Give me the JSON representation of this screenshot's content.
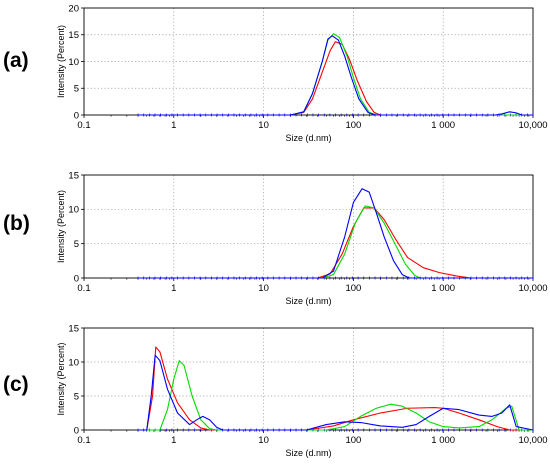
{
  "chart_data": [
    {
      "type": "line",
      "panel_label": "(a)",
      "xlabel": "Size (d.nm)",
      "ylabel": "Intensity (Percent)",
      "x_scale": "log",
      "xlim": [
        0.1,
        10000
      ],
      "ylim": [
        0,
        20
      ],
      "x_ticks": [
        0.1,
        1,
        10,
        100,
        1000,
        10000
      ],
      "x_tick_labels": [
        "0.1",
        "1",
        "10",
        "100",
        "1 000",
        "10,000"
      ],
      "y_ticks": [
        0,
        5,
        10,
        15,
        20
      ],
      "y_tick_labels": [
        "0",
        "5",
        "10",
        "15",
        "20"
      ],
      "grid": true,
      "series": [
        {
          "color": "#ff0000",
          "x": [
            0.4,
            20,
            28,
            35,
            45,
            55,
            63,
            75,
            90,
            110,
            140,
            170,
            200,
            10000
          ],
          "y": [
            0,
            0,
            0.5,
            3,
            8,
            12,
            13.7,
            13.2,
            10.5,
            6.5,
            2.5,
            0.5,
            0,
            0
          ]
        },
        {
          "color": "#00dd00",
          "x": [
            0.4,
            20,
            28,
            35,
            45,
            52,
            60,
            70,
            85,
            100,
            120,
            150,
            180,
            10000
          ],
          "y": [
            0,
            0,
            0.6,
            4,
            10,
            14,
            15.2,
            14.5,
            11,
            7,
            3,
            0.5,
            0,
            0
          ]
        },
        {
          "color": "#0000ff",
          "x": [
            0.4,
            20,
            28,
            35,
            45,
            52,
            58,
            68,
            80,
            95,
            115,
            145,
            175,
            3800,
            4500,
            5500,
            6500,
            7500,
            10000
          ],
          "y": [
            0,
            0,
            0.6,
            4,
            10,
            14.2,
            14.8,
            14,
            11,
            7,
            3,
            0.5,
            0,
            0,
            0.2,
            0.6,
            0.4,
            0,
            0
          ]
        }
      ]
    },
    {
      "type": "line",
      "panel_label": "(b)",
      "xlabel": "Size (d.nm)",
      "ylabel": "Intensity (Percent)",
      "x_scale": "log",
      "xlim": [
        0.1,
        10000
      ],
      "ylim": [
        0,
        15
      ],
      "x_ticks": [
        0.1,
        1,
        10,
        100,
        1000,
        10000
      ],
      "x_tick_labels": [
        "0.1",
        "1",
        "10",
        "100",
        "1 000",
        "10,000"
      ],
      "y_ticks": [
        0,
        5,
        10,
        15
      ],
      "y_tick_labels": [
        "0",
        "5",
        "10",
        "15"
      ],
      "grid": true,
      "series": [
        {
          "color": "#ff0000",
          "x": [
            0.4,
            40,
            55,
            75,
            100,
            130,
            170,
            220,
            300,
            400,
            600,
            900,
            1400,
            2000,
            10000
          ],
          "y": [
            0,
            0,
            0.6,
            3.5,
            7.5,
            10.2,
            10.2,
            8.5,
            5.5,
            3,
            1.5,
            0.8,
            0.3,
            0,
            0
          ]
        },
        {
          "color": "#00dd00",
          "x": [
            0.4,
            45,
            60,
            80,
            105,
            135,
            170,
            220,
            290,
            380,
            480,
            550,
            10000
          ],
          "y": [
            0,
            0,
            0.5,
            3.5,
            8,
            10.5,
            10.2,
            8,
            5,
            2,
            0.4,
            0,
            0
          ]
        },
        {
          "color": "#0000ff",
          "x": [
            0.4,
            45,
            60,
            80,
            100,
            125,
            150,
            180,
            220,
            280,
            350,
            420,
            10000
          ],
          "y": [
            0,
            0,
            1,
            6,
            11,
            13,
            12.5,
            9.5,
            6,
            2.5,
            0.5,
            0,
            0
          ]
        }
      ]
    },
    {
      "type": "line",
      "panel_label": "(c)",
      "xlabel": "Size (d.nm)",
      "ylabel": "Intensity (Percent)",
      "x_scale": "log",
      "xlim": [
        0.1,
        10000
      ],
      "ylim": [
        0,
        15
      ],
      "x_ticks": [
        0.1,
        1,
        10,
        100,
        1000,
        10000
      ],
      "x_tick_labels": [
        "0.1",
        "1",
        "10",
        "100",
        "1 000",
        "10,000"
      ],
      "y_ticks": [
        0,
        5,
        10,
        15
      ],
      "y_tick_labels": [
        "0",
        "5",
        "10",
        "15"
      ],
      "grid": true,
      "series": [
        {
          "color": "#ff0000",
          "x": [
            0.4,
            0.5,
            0.58,
            0.63,
            0.7,
            0.85,
            1.1,
            1.5,
            2,
            2.5,
            30,
            60,
            100,
            200,
            400,
            800,
            1000,
            1500,
            2500,
            4000,
            5500,
            10000
          ],
          "y": [
            0,
            0,
            5,
            12.2,
            11.5,
            7.5,
            4,
            1.5,
            0.3,
            0,
            0,
            0.6,
            1.5,
            2.5,
            3.2,
            3.3,
            3.2,
            2.5,
            1.5,
            0.5,
            0,
            0
          ]
        },
        {
          "color": "#00dd00",
          "x": [
            0.4,
            0.7,
            0.85,
            1,
            1.15,
            1.3,
            1.6,
            2,
            2.5,
            3,
            50,
            80,
            120,
            180,
            260,
            350,
            500,
            700,
            1000,
            1500,
            2500,
            3500,
            5000,
            5800,
            7000,
            10000
          ],
          "y": [
            0,
            0,
            3,
            7.5,
            10.2,
            9.5,
            5,
            1.5,
            0.2,
            0,
            0,
            0.5,
            2,
            3.2,
            3.8,
            3.5,
            2.5,
            1.2,
            0.5,
            0.3,
            0.5,
            1.5,
            3.2,
            3.5,
            0,
            0
          ]
        },
        {
          "color": "#0000ff",
          "x": [
            0.4,
            0.5,
            0.56,
            0.62,
            0.7,
            0.85,
            1.1,
            1.5,
            1.8,
            2.1,
            2.5,
            3,
            3.5,
            30,
            50,
            80,
            120,
            200,
            350,
            500,
            700,
            1000,
            1500,
            2500,
            3500,
            4500,
            5500,
            6500,
            10000
          ],
          "y": [
            0,
            0,
            5,
            11,
            10.2,
            6,
            2.5,
            0.8,
            1.5,
            2,
            1.5,
            0.4,
            0,
            0,
            0.8,
            1.2,
            1.1,
            0.6,
            0.4,
            0.8,
            2,
            3.2,
            3,
            2.2,
            2,
            2.5,
            3.7,
            0.5,
            0
          ]
        }
      ]
    }
  ]
}
